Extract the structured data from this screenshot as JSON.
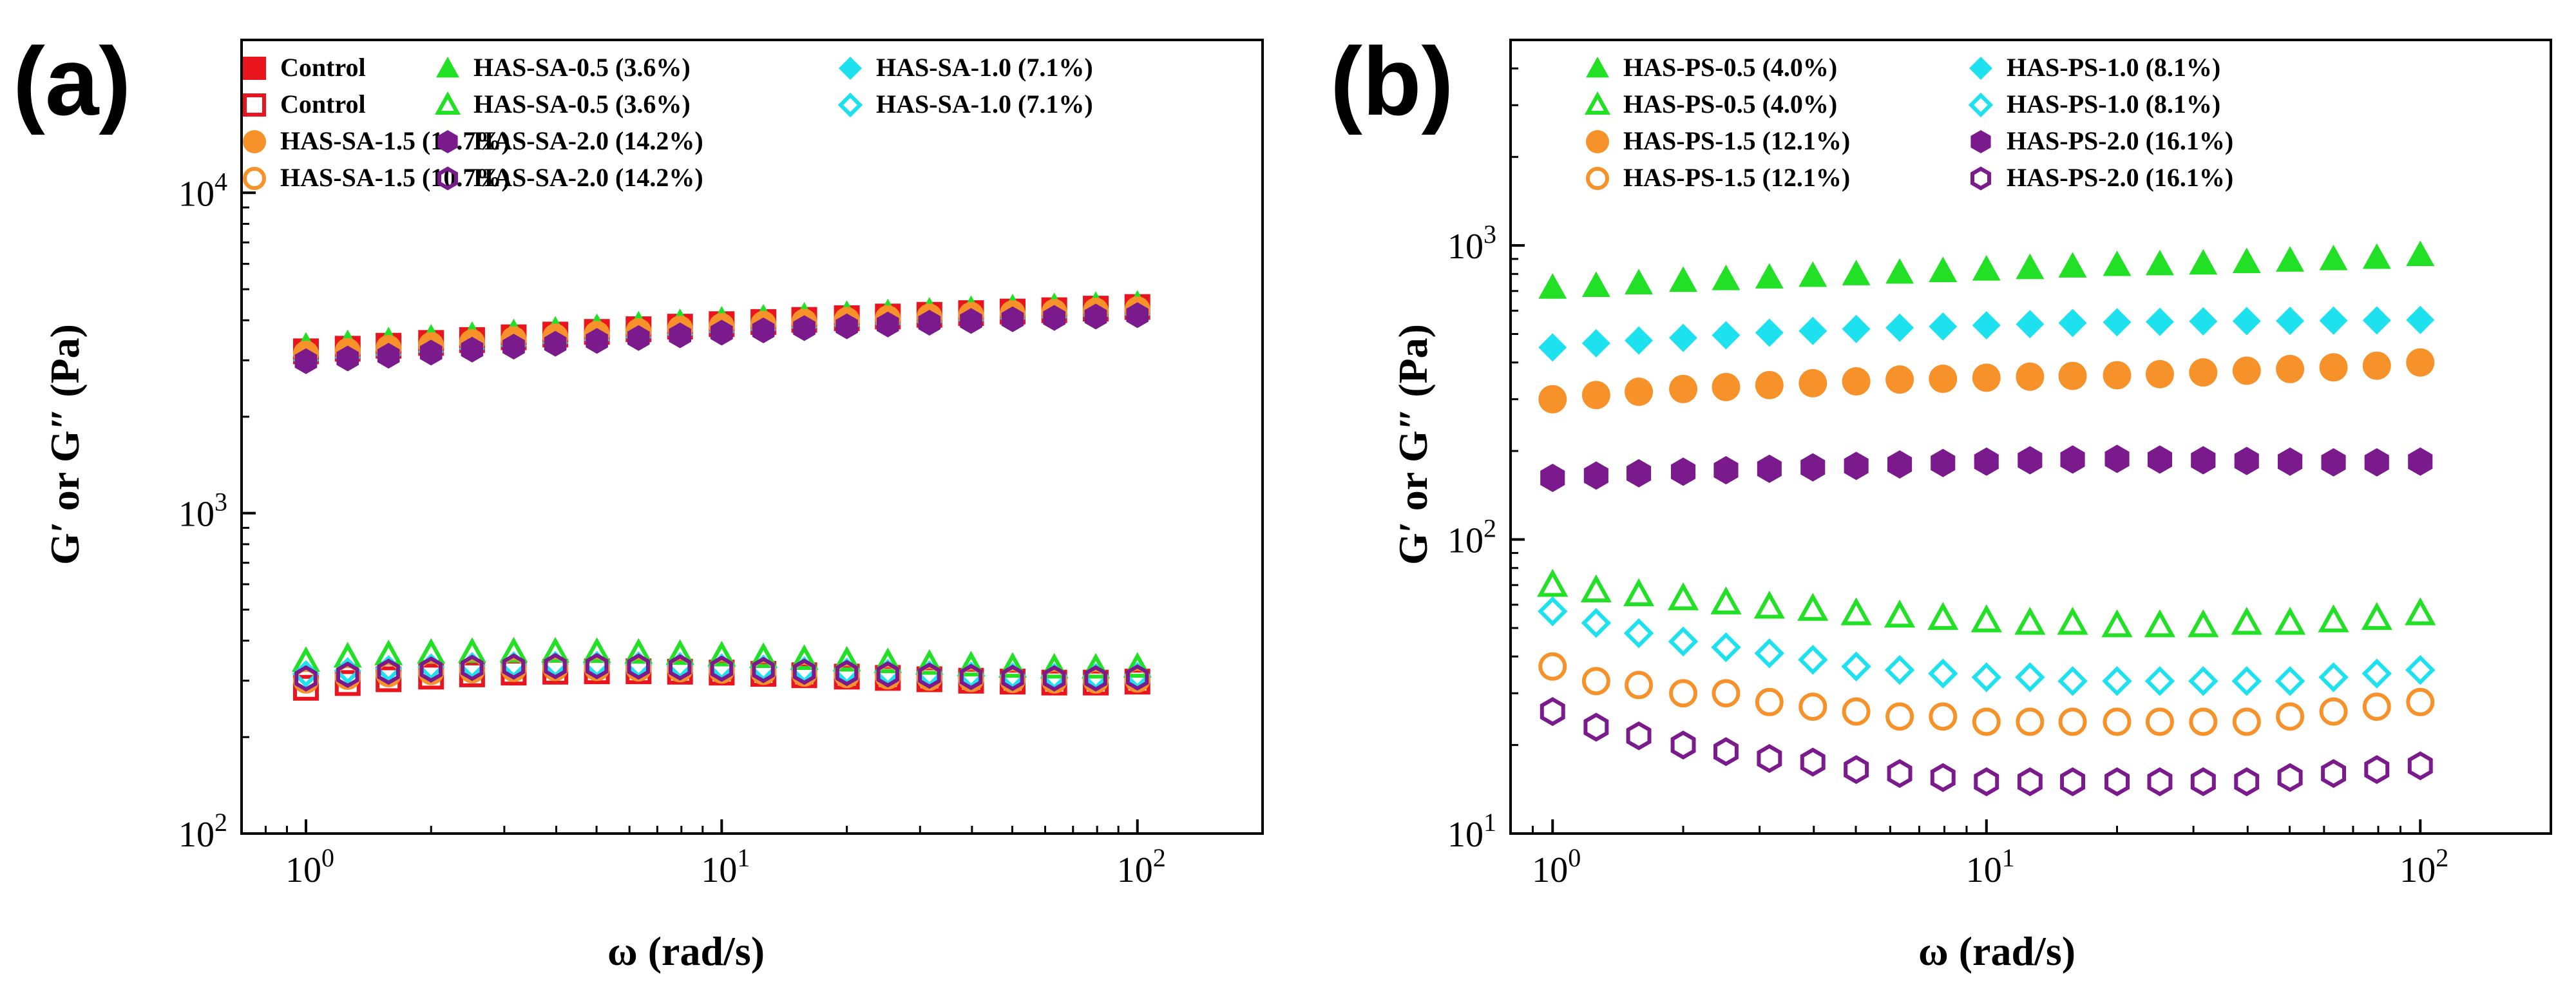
{
  "chart_data": [
    {
      "panel_label": "(a)",
      "type": "scatter",
      "x_scale": "log",
      "y_scale": "log",
      "xlabel": "ω  (rad/s)",
      "ylabel": "G′ or G″ (Pa)",
      "xlim": [
        0.7,
        200
      ],
      "ylim": [
        100,
        30000
      ],
      "xticks": [
        {
          "v": 1,
          "m": "10",
          "e": "0"
        },
        {
          "v": 10,
          "m": "10",
          "e": "1"
        },
        {
          "v": 100,
          "m": "10",
          "e": "2"
        }
      ],
      "yticks": [
        {
          "v": 100,
          "m": "10",
          "e": "2"
        },
        {
          "v": 1000,
          "m": "10",
          "e": "3"
        },
        {
          "v": 10000,
          "m": "10",
          "e": "4"
        }
      ],
      "grid": false,
      "legend_position": "top",
      "x": [
        1,
        1.26,
        1.58,
        2,
        2.51,
        3.16,
        3.98,
        5.01,
        6.31,
        7.94,
        10,
        12.6,
        15.8,
        20,
        25.1,
        31.6,
        39.8,
        50.1,
        63.1,
        79.4,
        100
      ],
      "series": [
        {
          "name": "Control",
          "marker": "square",
          "filled": true,
          "color": "#e8141e",
          "values": [
            3200,
            3260,
            3330,
            3400,
            3470,
            3540,
            3610,
            3680,
            3750,
            3820,
            3890,
            3950,
            4010,
            4060,
            4110,
            4160,
            4210,
            4260,
            4300,
            4350,
            4400
          ]
        },
        {
          "name": "Control",
          "marker": "square",
          "filled": false,
          "color": "#e8141e",
          "values": [
            285,
            295,
            303,
            309,
            314,
            318,
            320,
            321,
            321,
            320,
            318,
            315,
            312,
            309,
            306,
            303,
            300,
            298,
            296,
            296,
            298
          ]
        },
        {
          "name": "HAS-SA-0.5 (3.6%)",
          "marker": "triangle",
          "filled": true,
          "color": "#22e026",
          "values": [
            3350,
            3410,
            3480,
            3550,
            3620,
            3690,
            3760,
            3830,
            3900,
            3970,
            4040,
            4100,
            4160,
            4210,
            4260,
            4310,
            4360,
            4410,
            4450,
            4490,
            4530
          ]
        },
        {
          "name": "HAS-SA-0.5 (3.6%)",
          "marker": "triangle",
          "filled": false,
          "color": "#22e026",
          "values": [
            345,
            356,
            362,
            366,
            368,
            369,
            369,
            368,
            366,
            363,
            359,
            355,
            350,
            346,
            342,
            338,
            334,
            331,
            329,
            329,
            331
          ]
        },
        {
          "name": "HAS-SA-1.0 (7.1%)",
          "marker": "diamond",
          "filled": true,
          "color": "#1ee1f0",
          "values": [
            3000,
            3060,
            3120,
            3190,
            3260,
            3330,
            3400,
            3470,
            3540,
            3610,
            3680,
            3740,
            3800,
            3850,
            3900,
            3950,
            4000,
            4050,
            4090,
            4130,
            4170
          ]
        },
        {
          "name": "HAS-SA-1.0 (7.1%)",
          "marker": "diamond",
          "filled": false,
          "color": "#1ee1f0",
          "values": [
            315,
            322,
            327,
            331,
            334,
            336,
            337,
            337,
            336,
            334,
            331,
            328,
            324,
            321,
            318,
            315,
            312,
            310,
            309,
            309,
            311
          ]
        },
        {
          "name": "HAS-SA-1.5 (10.7%)",
          "marker": "circle",
          "filled": true,
          "color": "#f7922a",
          "values": [
            3150,
            3210,
            3280,
            3350,
            3420,
            3490,
            3560,
            3630,
            3700,
            3770,
            3840,
            3900,
            3960,
            4010,
            4060,
            4110,
            4160,
            4210,
            4250,
            4290,
            4330
          ]
        },
        {
          "name": "HAS-SA-1.5 (10.7%)",
          "marker": "circle",
          "filled": false,
          "color": "#f7922a",
          "values": [
            300,
            308,
            314,
            319,
            323,
            326,
            328,
            328,
            327,
            325,
            322,
            319,
            315,
            312,
            309,
            306,
            303,
            301,
            300,
            300,
            302
          ]
        },
        {
          "name": "HAS-SA-2.0 (14.2%)",
          "marker": "hexagon",
          "filled": true,
          "color": "#7b1a8c",
          "values": [
            2980,
            3040,
            3100,
            3170,
            3240,
            3310,
            3380,
            3450,
            3520,
            3590,
            3660,
            3720,
            3780,
            3830,
            3880,
            3930,
            3980,
            4030,
            4070,
            4110,
            4150
          ]
        },
        {
          "name": "HAS-SA-2.0 (14.2%)",
          "marker": "hexagon",
          "filled": false,
          "color": "#7b1a8c",
          "values": [
            305,
            313,
            320,
            325,
            329,
            332,
            333,
            333,
            332,
            330,
            327,
            324,
            320,
            317,
            314,
            311,
            308,
            306,
            305,
            305,
            307
          ]
        }
      ]
    },
    {
      "panel_label": "(b)",
      "type": "scatter",
      "x_scale": "log",
      "y_scale": "log",
      "xlabel": "ω  (rad/s)",
      "ylabel": "G′ or G″ (Pa)",
      "xlim": [
        0.8,
        200
      ],
      "ylim": [
        10,
        5000
      ],
      "xticks": [
        {
          "v": 1,
          "m": "10",
          "e": "0"
        },
        {
          "v": 10,
          "m": "10",
          "e": "1"
        },
        {
          "v": 100,
          "m": "10",
          "e": "2"
        }
      ],
      "yticks": [
        {
          "v": 10,
          "m": "10",
          "e": "1"
        },
        {
          "v": 100,
          "m": "10",
          "e": "2"
        },
        {
          "v": 1000,
          "m": "10",
          "e": "3"
        }
      ],
      "grid": false,
      "legend_position": "top",
      "x": [
        1,
        1.26,
        1.58,
        2,
        2.51,
        3.16,
        3.98,
        5.01,
        6.31,
        7.94,
        10,
        12.6,
        15.8,
        20,
        25.1,
        31.6,
        39.8,
        50.1,
        63.1,
        79.4,
        100
      ],
      "series": [
        {
          "name": "HAS-PS-0.5 (4.0%)",
          "marker": "triangle",
          "filled": true,
          "color": "#22e026",
          "values": [
            720,
            730,
            745,
            760,
            770,
            780,
            790,
            800,
            810,
            820,
            830,
            840,
            850,
            860,
            865,
            870,
            880,
            890,
            900,
            910,
            930
          ]
        },
        {
          "name": "HAS-PS-0.5 (4.0%)",
          "marker": "triangle",
          "filled": false,
          "color": "#22e026",
          "values": [
            70,
            67,
            65,
            63,
            61,
            59,
            58,
            56,
            55,
            54,
            53,
            52,
            52,
            51,
            51,
            51,
            52,
            52,
            53,
            54,
            56
          ]
        },
        {
          "name": "HAS-PS-1.0 (8.1%)",
          "marker": "diamond",
          "filled": true,
          "color": "#1ee1f0",
          "values": [
            450,
            465,
            475,
            485,
            495,
            505,
            512,
            520,
            525,
            530,
            535,
            540,
            545,
            548,
            550,
            552,
            553,
            554,
            555,
            556,
            558
          ]
        },
        {
          "name": "HAS-PS-1.0 (8.1%)",
          "marker": "diamond",
          "filled": false,
          "color": "#1ee1f0",
          "values": [
            57,
            52,
            48,
            45,
            43,
            41,
            39,
            37,
            36,
            35,
            34,
            34,
            33,
            33,
            33,
            33,
            33,
            33,
            34,
            35,
            36
          ]
        },
        {
          "name": "HAS-PS-1.5 (12.1%)",
          "marker": "circle",
          "filled": true,
          "color": "#f7922a",
          "values": [
            300,
            310,
            318,
            325,
            330,
            335,
            340,
            345,
            350,
            352,
            355,
            358,
            360,
            362,
            365,
            370,
            375,
            380,
            385,
            390,
            400
          ]
        },
        {
          "name": "HAS-PS-1.5 (12.1%)",
          "marker": "circle",
          "filled": false,
          "color": "#f7922a",
          "values": [
            37,
            33,
            32,
            30,
            30,
            28,
            27,
            26,
            25,
            25,
            24,
            24,
            24,
            24,
            24,
            24,
            24,
            25,
            26,
            27,
            28
          ]
        },
        {
          "name": "HAS-PS-2.0 (16.1%)",
          "marker": "hexagon",
          "filled": true,
          "color": "#7b1a8c",
          "values": [
            162,
            165,
            168,
            170,
            172,
            174,
            176,
            178,
            180,
            182,
            184,
            186,
            187,
            188,
            187,
            186,
            185,
            184,
            183,
            183,
            184
          ]
        },
        {
          "name": "HAS-PS-2.0 (16.1%)",
          "marker": "hexagon",
          "filled": false,
          "color": "#7b1a8c",
          "values": [
            26,
            23,
            21.5,
            20,
            19,
            18,
            17.5,
            16.5,
            16,
            15.5,
            15,
            15,
            15,
            15,
            15,
            15,
            15,
            15.5,
            16,
            16.5,
            17
          ]
        }
      ]
    }
  ]
}
